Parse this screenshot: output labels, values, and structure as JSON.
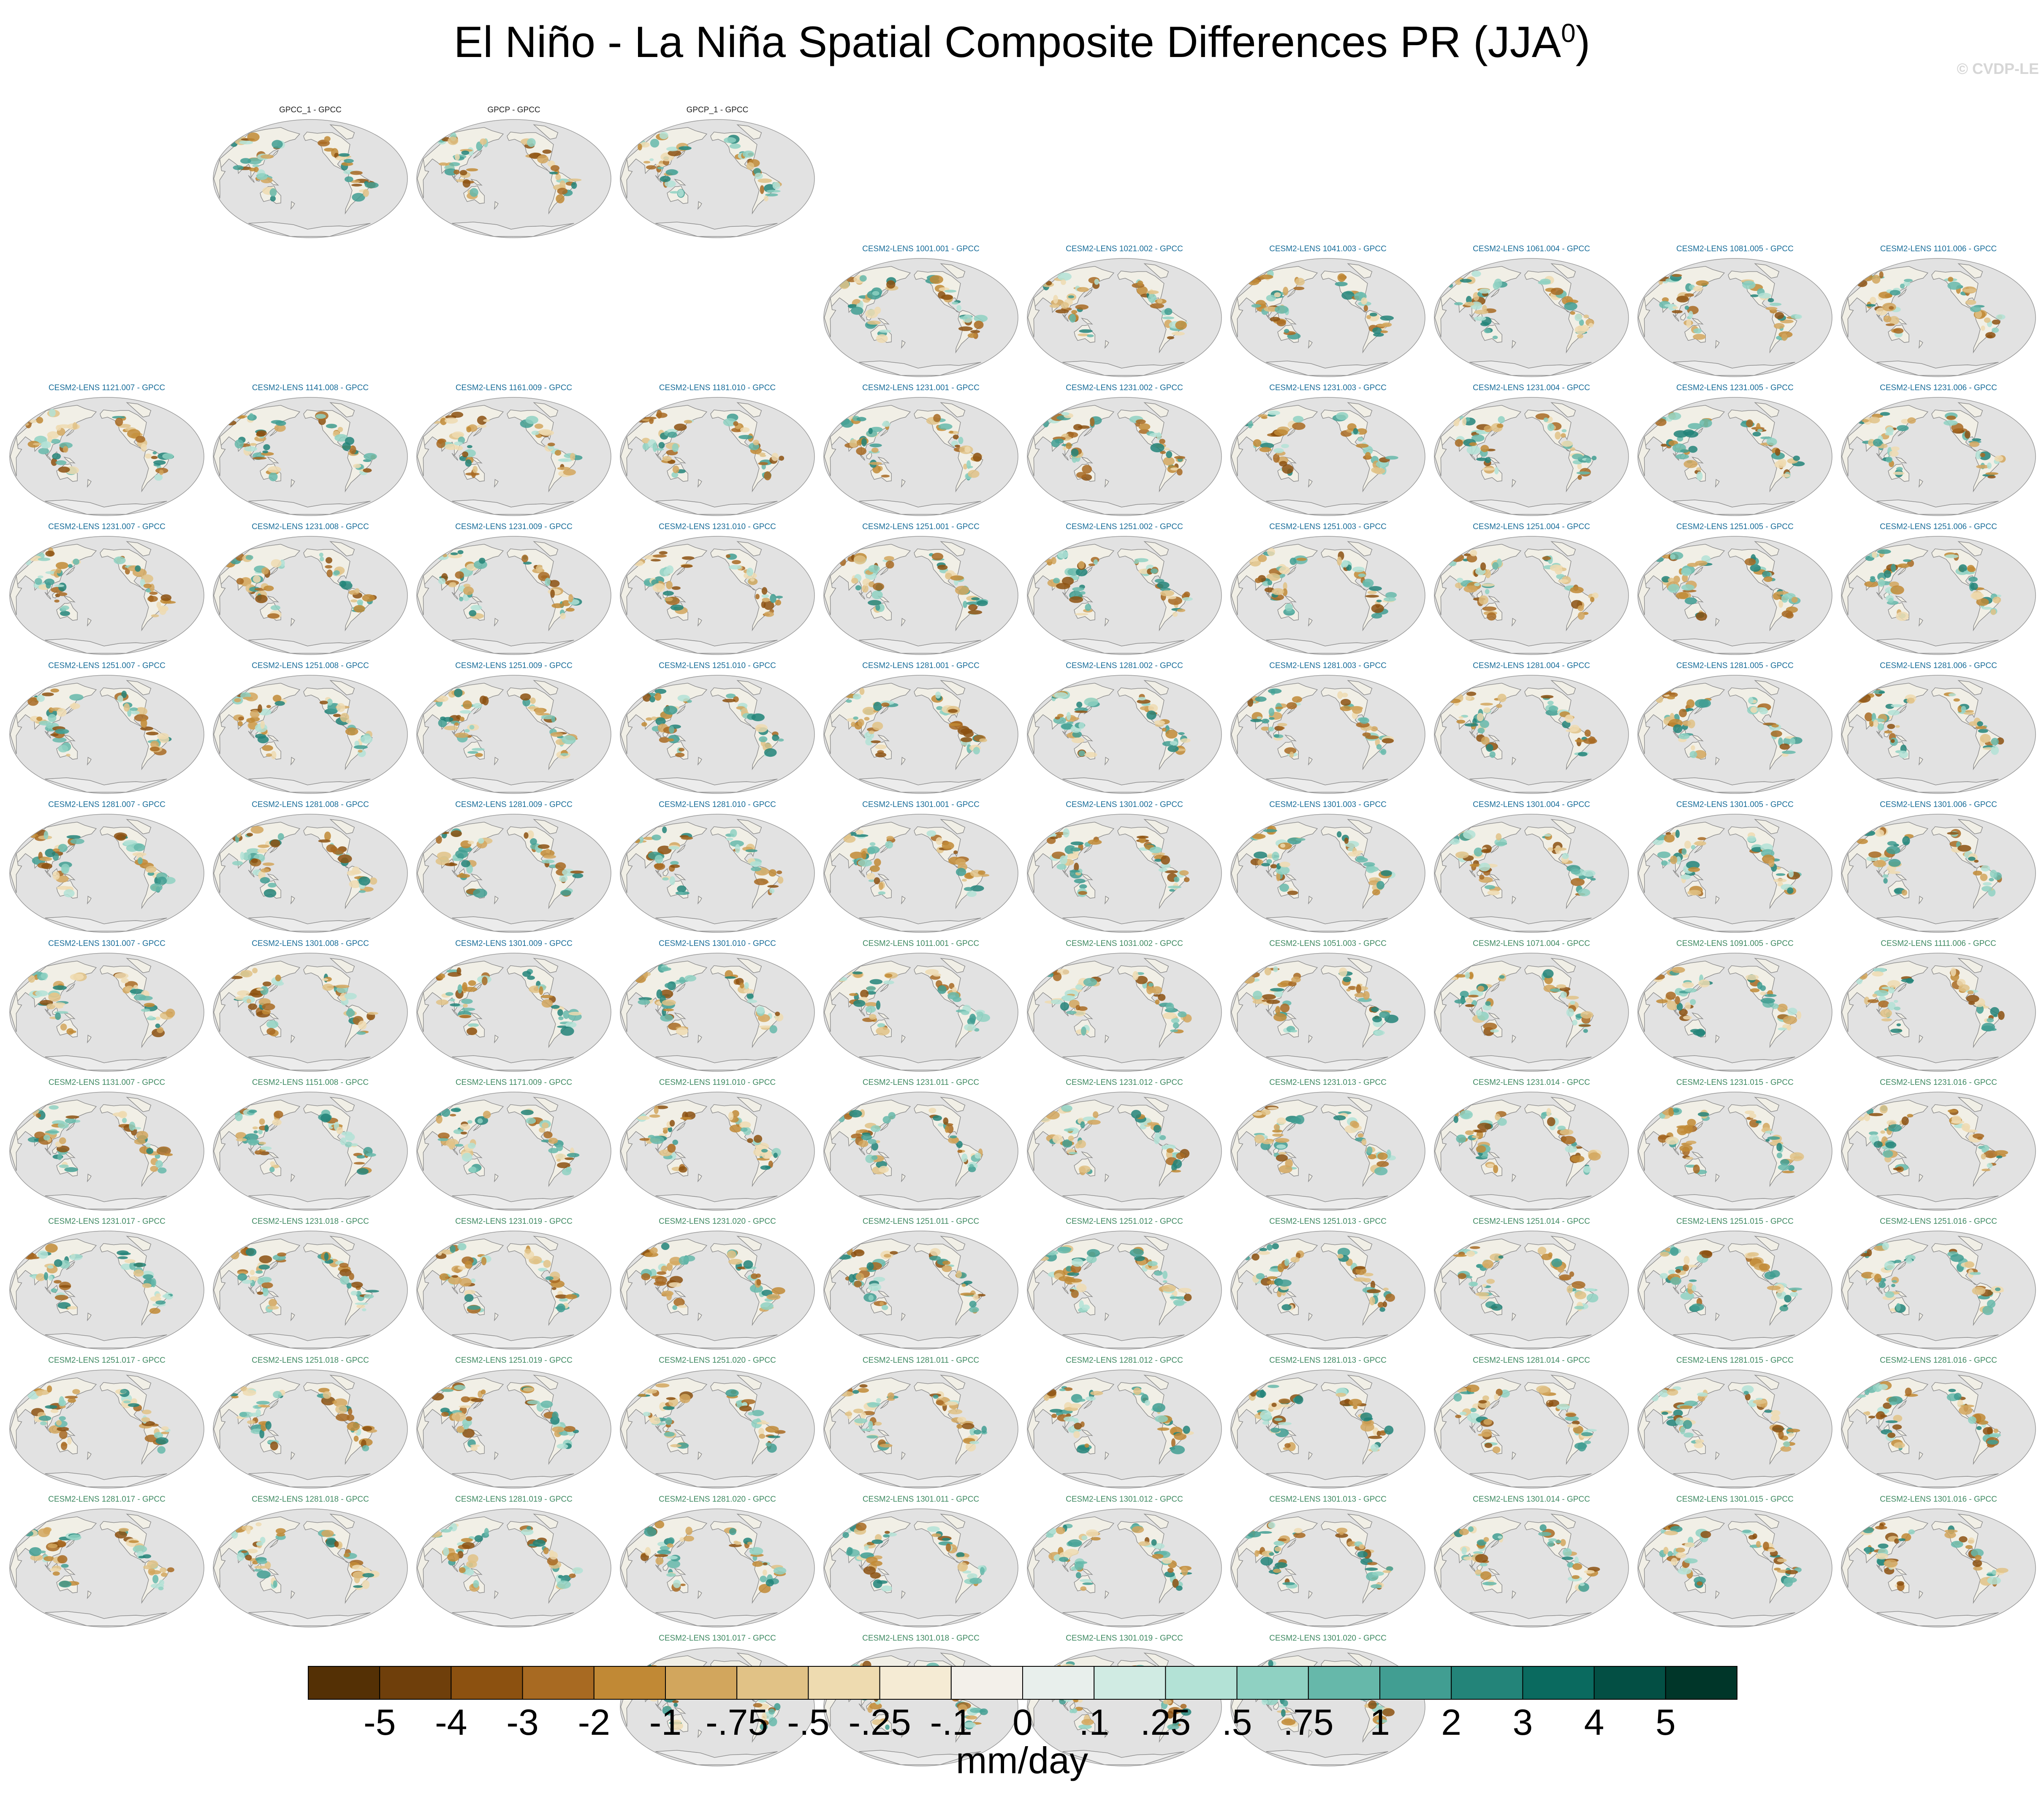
{
  "title": {
    "main": "El Niño - La Niña Spatial Composite Differences PR (JJA",
    "sup": "0",
    "close": ")"
  },
  "watermark": "© CVDP-LE",
  "colors": {
    "obs_title": "#222222",
    "ens_title_1": "#1a6e9a",
    "ens_title_2": "#3f8a62",
    "ocean": "#e2e2e2",
    "coast": "#8a8a8a"
  },
  "rows": [
    {
      "offset": 1,
      "label_style": "obs",
      "panels": [
        "GPCC_1 - GPCC",
        "GPCP - GPCC",
        "GPCP_1 - GPCC"
      ]
    },
    {
      "offset": 4,
      "label_style": "ens1",
      "panels": [
        "CESM2-LENS 1001.001 - GPCC",
        "CESM2-LENS 1021.002 - GPCC",
        "CESM2-LENS 1041.003 - GPCC",
        "CESM2-LENS 1061.004 - GPCC",
        "CESM2-LENS 1081.005 - GPCC",
        "CESM2-LENS 1101.006 - GPCC"
      ]
    },
    {
      "offset": 0,
      "label_style": "ens1",
      "panels": [
        "CESM2-LENS 1121.007 - GPCC",
        "CESM2-LENS 1141.008 - GPCC",
        "CESM2-LENS 1161.009 - GPCC",
        "CESM2-LENS 1181.010 - GPCC",
        "CESM2-LENS 1231.001 - GPCC",
        "CESM2-LENS 1231.002 - GPCC",
        "CESM2-LENS 1231.003 - GPCC",
        "CESM2-LENS 1231.004 - GPCC",
        "CESM2-LENS 1231.005 - GPCC",
        "CESM2-LENS 1231.006 - GPCC"
      ]
    },
    {
      "offset": 0,
      "label_style": "ens1",
      "panels": [
        "CESM2-LENS 1231.007 - GPCC",
        "CESM2-LENS 1231.008 - GPCC",
        "CESM2-LENS 1231.009 - GPCC",
        "CESM2-LENS 1231.010 - GPCC",
        "CESM2-LENS 1251.001 - GPCC",
        "CESM2-LENS 1251.002 - GPCC",
        "CESM2-LENS 1251.003 - GPCC",
        "CESM2-LENS 1251.004 - GPCC",
        "CESM2-LENS 1251.005 - GPCC",
        "CESM2-LENS 1251.006 - GPCC"
      ]
    },
    {
      "offset": 0,
      "label_style": "ens1",
      "panels": [
        "CESM2-LENS 1251.007 - GPCC",
        "CESM2-LENS 1251.008 - GPCC",
        "CESM2-LENS 1251.009 - GPCC",
        "CESM2-LENS 1251.010 - GPCC",
        "CESM2-LENS 1281.001 - GPCC",
        "CESM2-LENS 1281.002 - GPCC",
        "CESM2-LENS 1281.003 - GPCC",
        "CESM2-LENS 1281.004 - GPCC",
        "CESM2-LENS 1281.005 - GPCC",
        "CESM2-LENS 1281.006 - GPCC"
      ]
    },
    {
      "offset": 0,
      "label_style": "ens1",
      "panels": [
        "CESM2-LENS 1281.007 - GPCC",
        "CESM2-LENS 1281.008 - GPCC",
        "CESM2-LENS 1281.009 - GPCC",
        "CESM2-LENS 1281.010 - GPCC",
        "CESM2-LENS 1301.001 - GPCC",
        "CESM2-LENS 1301.002 - GPCC",
        "CESM2-LENS 1301.003 - GPCC",
        "CESM2-LENS 1301.004 - GPCC",
        "CESM2-LENS 1301.005 - GPCC",
        "CESM2-LENS 1301.006 - GPCC"
      ]
    },
    {
      "offset": 0,
      "label_style": "mixed",
      "panels": [
        "CESM2-LENS 1301.007 - GPCC",
        "CESM2-LENS 1301.008 - GPCC",
        "CESM2-LENS 1301.009 - GPCC",
        "CESM2-LENS 1301.010 - GPCC",
        "CESM2-LENS 1011.001 - GPCC",
        "CESM2-LENS 1031.002 - GPCC",
        "CESM2-LENS 1051.003 - GPCC",
        "CESM2-LENS 1071.004 - GPCC",
        "CESM2-LENS 1091.005 - GPCC",
        "CESM2-LENS 1111.006 - GPCC"
      ]
    },
    {
      "offset": 0,
      "label_style": "ens2",
      "panels": [
        "CESM2-LENS 1131.007 - GPCC",
        "CESM2-LENS 1151.008 - GPCC",
        "CESM2-LENS 1171.009 - GPCC",
        "CESM2-LENS 1191.010 - GPCC",
        "CESM2-LENS 1231.011 - GPCC",
        "CESM2-LENS 1231.012 - GPCC",
        "CESM2-LENS 1231.013 - GPCC",
        "CESM2-LENS 1231.014 - GPCC",
        "CESM2-LENS 1231.015 - GPCC",
        "CESM2-LENS 1231.016 - GPCC"
      ]
    },
    {
      "offset": 0,
      "label_style": "ens2",
      "panels": [
        "CESM2-LENS 1231.017 - GPCC",
        "CESM2-LENS 1231.018 - GPCC",
        "CESM2-LENS 1231.019 - GPCC",
        "CESM2-LENS 1231.020 - GPCC",
        "CESM2-LENS 1251.011 - GPCC",
        "CESM2-LENS 1251.012 - GPCC",
        "CESM2-LENS 1251.013 - GPCC",
        "CESM2-LENS 1251.014 - GPCC",
        "CESM2-LENS 1251.015 - GPCC",
        "CESM2-LENS 1251.016 - GPCC"
      ]
    },
    {
      "offset": 0,
      "label_style": "ens2",
      "panels": [
        "CESM2-LENS 1251.017 - GPCC",
        "CESM2-LENS 1251.018 - GPCC",
        "CESM2-LENS 1251.019 - GPCC",
        "CESM2-LENS 1251.020 - GPCC",
        "CESM2-LENS 1281.011 - GPCC",
        "CESM2-LENS 1281.012 - GPCC",
        "CESM2-LENS 1281.013 - GPCC",
        "CESM2-LENS 1281.014 - GPCC",
        "CESM2-LENS 1281.015 - GPCC",
        "CESM2-LENS 1281.016 - GPCC"
      ]
    },
    {
      "offset": 0,
      "label_style": "ens2",
      "panels": [
        "CESM2-LENS 1281.017 - GPCC",
        "CESM2-LENS 1281.018 - GPCC",
        "CESM2-LENS 1281.019 - GPCC",
        "CESM2-LENS 1281.020 - GPCC",
        "CESM2-LENS 1301.011 - GPCC",
        "CESM2-LENS 1301.012 - GPCC",
        "CESM2-LENS 1301.013 - GPCC",
        "CESM2-LENS 1301.014 - GPCC",
        "CESM2-LENS 1301.015 - GPCC",
        "CESM2-LENS 1301.016 - GPCC"
      ]
    },
    {
      "offset": 3,
      "label_style": "ens2",
      "panels": [
        "CESM2-LENS 1301.017 - GPCC",
        "CESM2-LENS 1301.018 - GPCC",
        "CESM2-LENS 1301.019 - GPCC",
        "CESM2-LENS 1301.020 - GPCC"
      ]
    }
  ],
  "colorbar": {
    "tick_labels": [
      "-5",
      "-4",
      "-3",
      "-2",
      "-1",
      "-.75",
      "-.5",
      "-.25",
      "-.1",
      "0",
      ".1",
      ".25",
      ".5",
      ".75",
      "1",
      "2",
      "3",
      "4",
      "5"
    ],
    "colors": [
      "#543005",
      "#6f3f0b",
      "#8c5110",
      "#a86a22",
      "#c18935",
      "#d2a65d",
      "#e1c286",
      "#eedbb0",
      "#f5ebd4",
      "#f3f0ea",
      "#e8efec",
      "#d0ebe3",
      "#b3e2d6",
      "#8fd1c2",
      "#66b8aa",
      "#419e92",
      "#238479",
      "#0a6a5f",
      "#034f44",
      "#003629"
    ],
    "units": "mm/day"
  }
}
